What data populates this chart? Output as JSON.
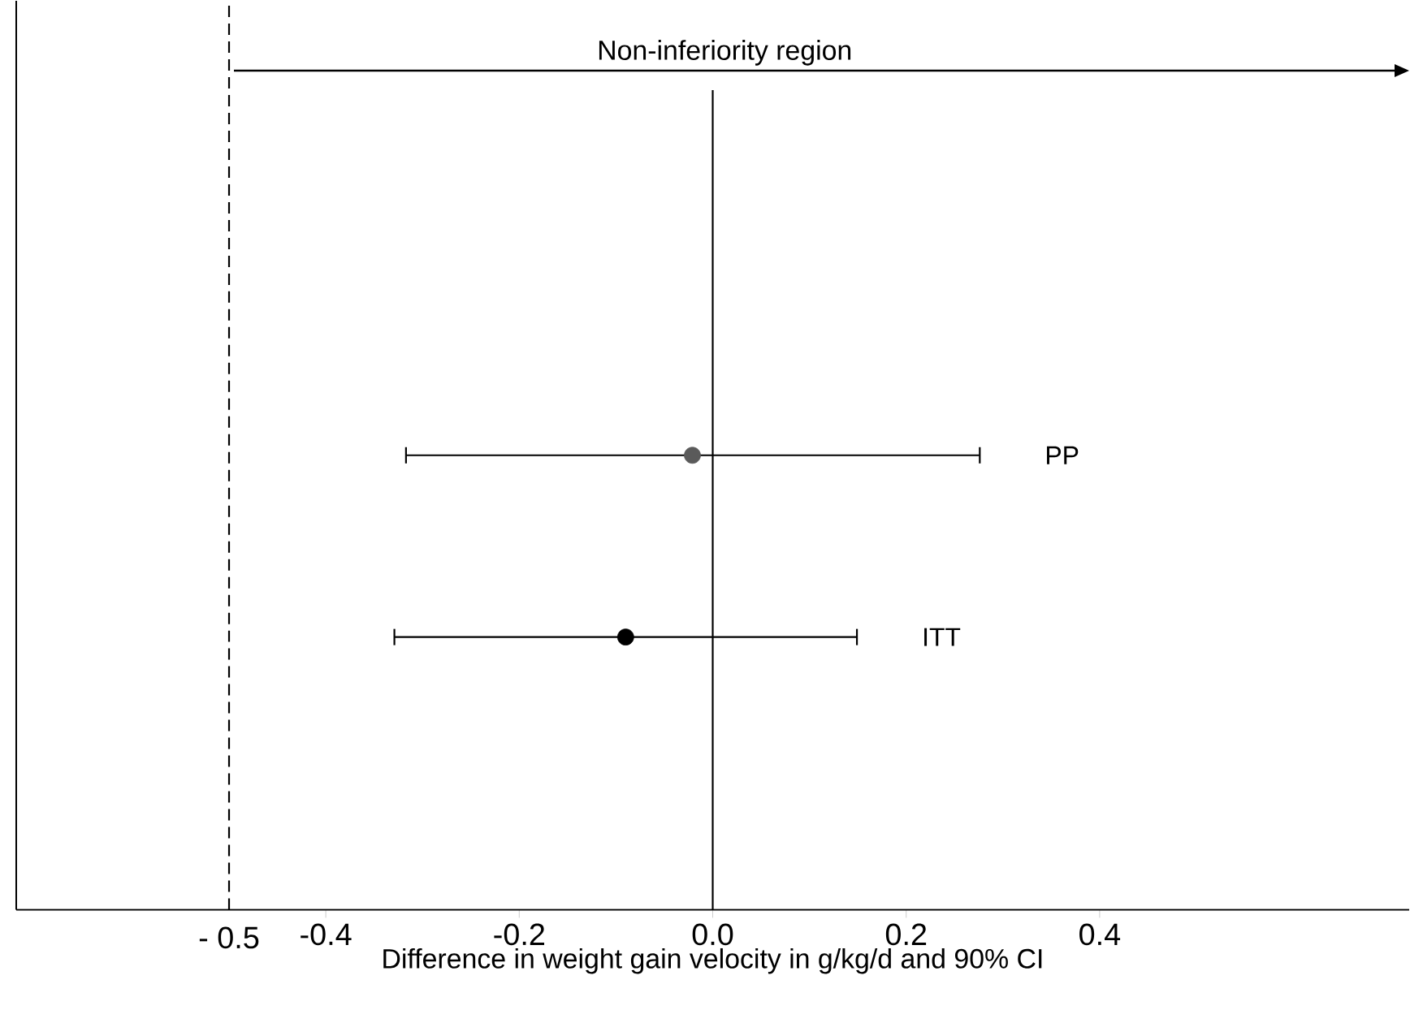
{
  "chart_data": {
    "type": "scatter",
    "orientation": "horizontal",
    "xlabel": "Difference in weight gain velocity in g/kg/d and 90% CI",
    "categories": [
      null,
      null,
      "PP",
      "ITT",
      null
    ],
    "values": [
      null,
      null,
      -0.021,
      -0.09,
      null
    ],
    "errors": [
      null,
      null,
      [
        -0.318,
        0.277
      ],
      [
        -0.33,
        0.15
      ],
      null
    ],
    "colors": [
      null,
      null,
      "#5a5a5a",
      "#000000",
      null
    ],
    "marker": "circle",
    "xlim": [
      -0.72,
      0.72
    ],
    "xticks": [
      {
        "value": -0.5,
        "label": "- 0.5"
      },
      -0.4,
      -0.2,
      {
        "value": 0,
        "label": "0.0"
      },
      0.2,
      0.4
    ],
    "ref_lines": [
      {
        "axis": "x",
        "value": -0.5,
        "line_style": "dashed",
        "color": "#000000"
      },
      {
        "axis": "x",
        "value": 0,
        "line_style": "solid",
        "color": "#000000"
      }
    ],
    "annotations": [
      "Non-inferiority region"
    ],
    "grid": false
  }
}
